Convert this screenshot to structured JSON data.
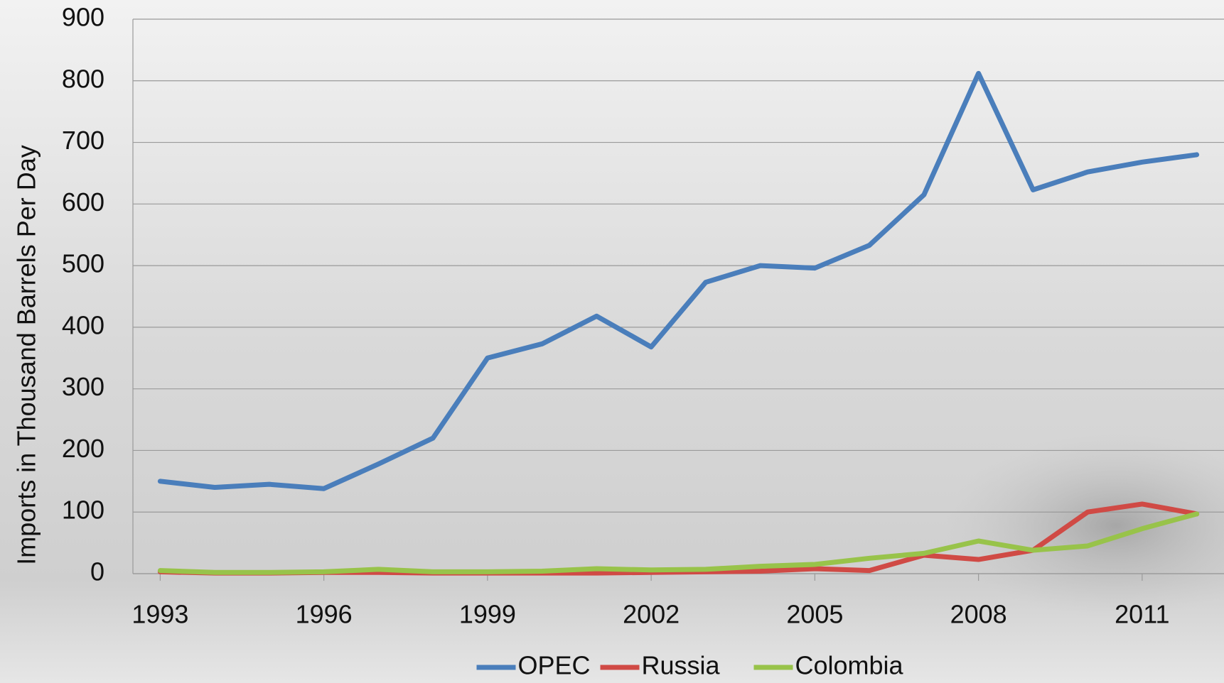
{
  "chart_data": {
    "type": "line",
    "y_label": "Imports in Thousand Barrels Per Day",
    "x": [
      1993,
      1994,
      1995,
      1996,
      1997,
      1998,
      1999,
      2000,
      2001,
      2002,
      2003,
      2004,
      2005,
      2006,
      2007,
      2008,
      2009,
      2010,
      2011,
      2012
    ],
    "xlim": [
      1992.5,
      2012.5
    ],
    "xticks": [
      1993,
      1996,
      1999,
      2002,
      2005,
      2008,
      2011
    ],
    "ylim": [
      0,
      900
    ],
    "yticks": [
      0,
      100,
      200,
      300,
      400,
      500,
      600,
      700,
      800,
      900
    ],
    "grid": true,
    "legend": "bottom",
    "series": [
      {
        "name": "OPEC",
        "color": "#4a7ebb",
        "values": [
          150,
          140,
          145,
          138,
          178,
          220,
          350,
          373,
          418,
          368,
          473,
          500,
          496,
          533,
          615,
          812,
          623,
          652,
          668,
          680
        ]
      },
      {
        "name": "Russia",
        "color": "#d04a45",
        "values": [
          3,
          1,
          1,
          2,
          2,
          1,
          1,
          1,
          1,
          2,
          3,
          4,
          8,
          5,
          30,
          23,
          38,
          100,
          113,
          97
        ]
      },
      {
        "name": "Colombia",
        "color": "#98c34a",
        "values": [
          5,
          2,
          2,
          3,
          7,
          3,
          3,
          4,
          8,
          6,
          7,
          12,
          15,
          25,
          33,
          53,
          38,
          45,
          73,
          97
        ]
      }
    ]
  }
}
